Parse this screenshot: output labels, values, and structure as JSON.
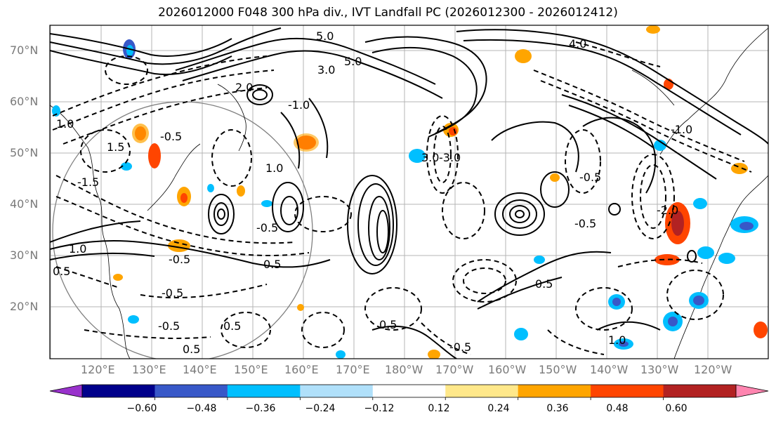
{
  "title": "2026012000 F048 300 hPa div., IVT Landfall PC (2026012300 - 2026012412)",
  "lat_labels": [
    "70°N",
    "60°N",
    "50°N",
    "40°N",
    "30°N",
    "20°N"
  ],
  "lon_labels": [
    "120°E",
    "130°E",
    "140°E",
    "150°E",
    "160°E",
    "170°E",
    "180°W",
    "170°W",
    "160°W",
    "150°W",
    "140°W",
    "130°W",
    "120°W"
  ],
  "colorbar": {
    "colors": [
      "#9932cc",
      "#00008b",
      "#3858c8",
      "#00bfff",
      "#b0e0fa",
      "#ffffff",
      "#ffe88a",
      "#ffa500",
      "#ff4500",
      "#b22222",
      "#ff85b0"
    ],
    "tick_labels": [
      "−0.60",
      "−0.48",
      "−0.36",
      "−0.24",
      "−0.12",
      "0.12",
      "0.24",
      "0.36",
      "0.48",
      "0.60"
    ]
  },
  "contour_labels": [
    "5.0",
    "5.0",
    "4.0",
    "3.0",
    "3.0",
    "2.0",
    "1.0",
    "1.0",
    "1.0",
    "1.5",
    "0.5",
    "0.5",
    "-0.5",
    "-0.5",
    "-0.5",
    "-0.5",
    "-0.5",
    "-0.5",
    "-0.5",
    "-1.0",
    "-1.5",
    "-2.0",
    "-3.0",
    "-1.0",
    "0.5",
    "0.5",
    "0.5",
    "-0.5",
    "0.5",
    "1.0"
  ],
  "colors": {
    "contour": "#000000",
    "grid": "#b4b4b4",
    "axis_text": "#7a7a7a"
  }
}
